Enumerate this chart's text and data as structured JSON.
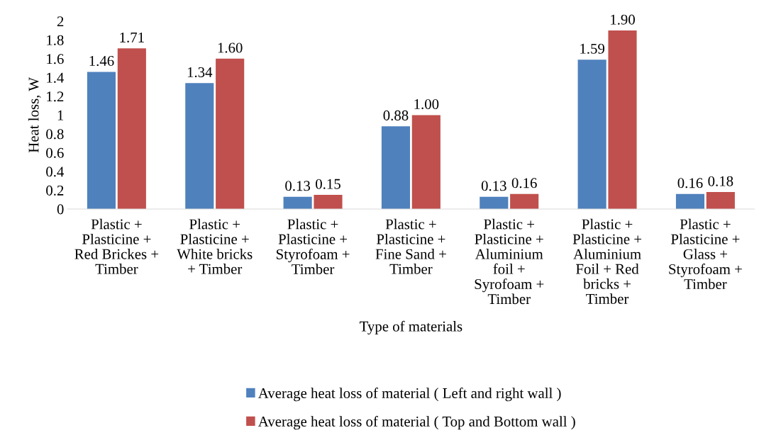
{
  "chart_data": {
    "type": "bar",
    "xlabel": "Type of materials",
    "ylabel": "Heat loss, W",
    "categories": [
      "Plastic +\nPlasticine +\nRed Brickes +\nTimber",
      "Plastic +\nPlasticine +\nWhite bricks\n+ Timber",
      "Plastic +\nPlasticine +\nStyrofoam +\nTimber",
      "Plastic +\nPlasticine +\nFine Sand +\nTimber",
      "Plastic +\nPlasticine +\nAluminium\nfoil +\nSyrofoam +\nTimber",
      "Plastic +\nPlasticine +\nAluminium\nFoil + Red\nbricks +\nTimber",
      "Plastic +\nPlasticine +\nGlass +\nStyrofoam +\nTimber"
    ],
    "series": [
      {
        "name": "Average heat loss of material ( Left and right wall )",
        "color": "#4f81bd",
        "values": [
          1.46,
          1.34,
          0.13,
          0.88,
          0.13,
          1.59,
          0.16
        ],
        "value_labels": [
          "1.46",
          "1.34",
          "0.13",
          "0.88",
          "0.13",
          "1.59",
          "0.16"
        ]
      },
      {
        "name": "Average heat loss of material ( Top and Bottom wall )",
        "color": "#c0504d",
        "values": [
          1.71,
          1.6,
          0.15,
          1.0,
          0.16,
          1.9,
          0.18
        ],
        "value_labels": [
          "1.71",
          "1.60",
          "0.15",
          "1.00",
          "0.16",
          "1.90",
          "0.18"
        ]
      }
    ],
    "ylim": [
      0,
      2
    ],
    "yticks": [
      0,
      0.2,
      0.4,
      0.6,
      0.8,
      1,
      1.2,
      1.4,
      1.6,
      1.8,
      2
    ],
    "grid": false,
    "legend": "bottom"
  }
}
